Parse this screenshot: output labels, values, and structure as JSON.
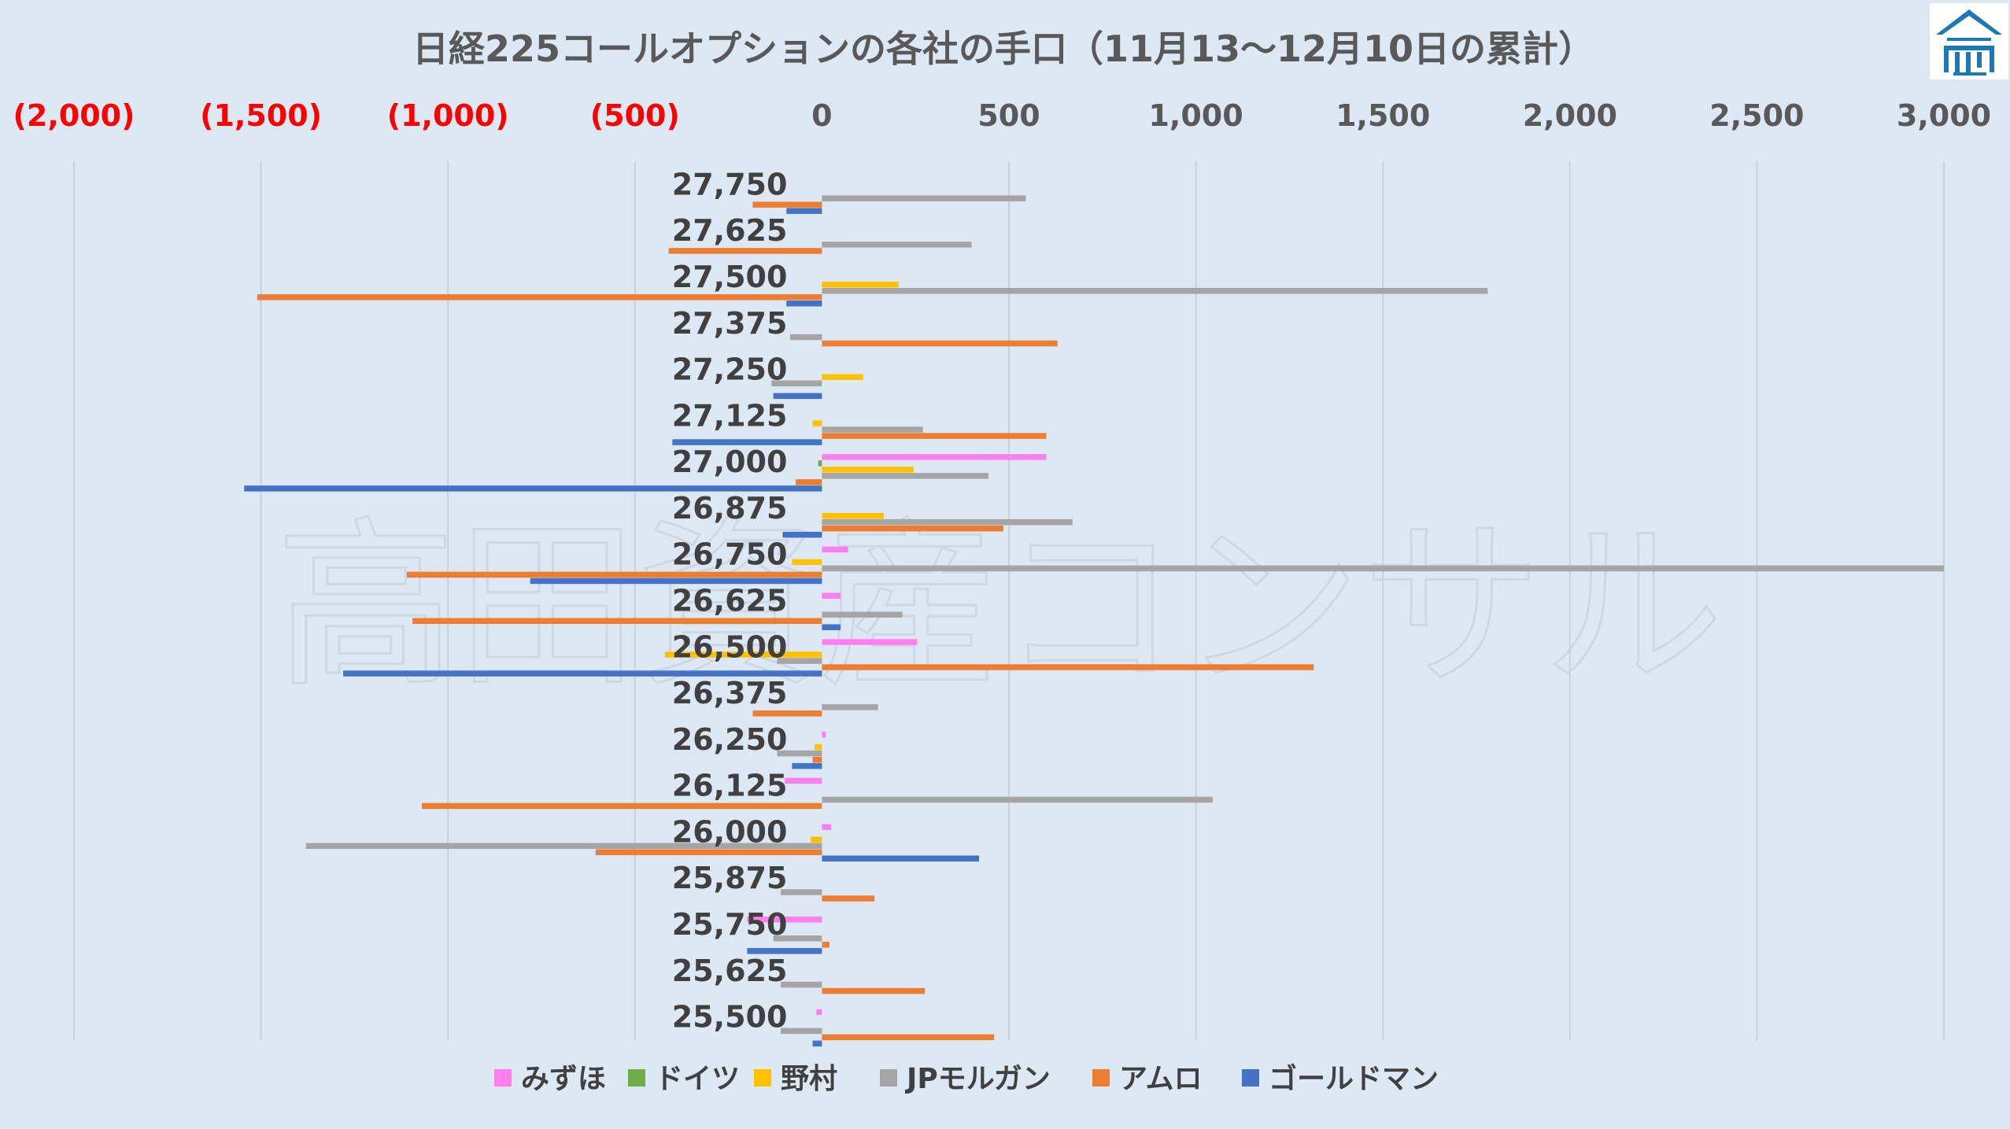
{
  "logo": {
    "icon": "house-logo-icon",
    "color": "#1f77b4"
  },
  "watermark_text": "高田資産コンサル",
  "chart_data": {
    "type": "bar",
    "orientation": "horizontal",
    "title": "日経225コールオプションの各社の手口（11月13～12月10日の累計）",
    "xlim": [
      -2000,
      3000
    ],
    "xticks": [
      -2000,
      -1500,
      -1000,
      -500,
      0,
      500,
      1000,
      1500,
      2000,
      2500,
      3000
    ],
    "xtick_labels": [
      "(2,000)",
      "(1,500)",
      "(1,000)",
      "(500)",
      "0",
      "500",
      "1,000",
      "1,500",
      "2,000",
      "2,500",
      "3,000"
    ],
    "negative_tick_color": "#ff0000",
    "positive_tick_color": "#595959",
    "grid": "vertical",
    "legend_position": "bottom",
    "categories": [
      "27,750",
      "27,625",
      "27,500",
      "27,375",
      "27,250",
      "27,125",
      "27,000",
      "26,875",
      "26,750",
      "26,625",
      "26,500",
      "26,375",
      "26,250",
      "26,125",
      "26,000",
      "25,875",
      "25,750",
      "25,625",
      "25,500"
    ],
    "series": [
      {
        "name": "みずほ",
        "color": "#ff7ff0",
        "values": [
          0,
          0,
          0,
          0,
          0,
          0,
          600,
          0,
          70,
          50,
          255,
          0,
          10,
          -100,
          25,
          0,
          -200,
          0,
          -15
        ]
      },
      {
        "name": "ドイツ",
        "color": "#70ad47",
        "values": [
          0,
          0,
          0,
          0,
          0,
          0,
          -10,
          0,
          0,
          0,
          0,
          0,
          0,
          0,
          0,
          0,
          0,
          0,
          0
        ]
      },
      {
        "name": "野村",
        "color": "#ffc000",
        "values": [
          0,
          0,
          205,
          0,
          110,
          -25,
          245,
          165,
          -80,
          0,
          -420,
          0,
          -20,
          0,
          -30,
          0,
          0,
          0,
          0
        ]
      },
      {
        "name": "JPモルガン",
        "color": "#a5a5a5",
        "values": [
          545,
          400,
          1780,
          -85,
          -135,
          270,
          445,
          670,
          3000,
          215,
          -120,
          150,
          -120,
          1045,
          -1380,
          -110,
          -130,
          -110,
          -110
        ]
      },
      {
        "name": "アムロ",
        "color": "#ed7d31",
        "values": [
          -185,
          -410,
          -1510,
          630,
          0,
          600,
          -70,
          485,
          -1110,
          -1095,
          1315,
          -185,
          -25,
          -1070,
          -605,
          140,
          20,
          275,
          460
        ]
      },
      {
        "name": "ゴールドマン",
        "color": "#4472c4",
        "values": [
          -95,
          0,
          -95,
          0,
          -130,
          -400,
          -1545,
          -105,
          -780,
          50,
          -1280,
          0,
          -80,
          0,
          420,
          0,
          -200,
          0,
          -25
        ]
      }
    ]
  }
}
